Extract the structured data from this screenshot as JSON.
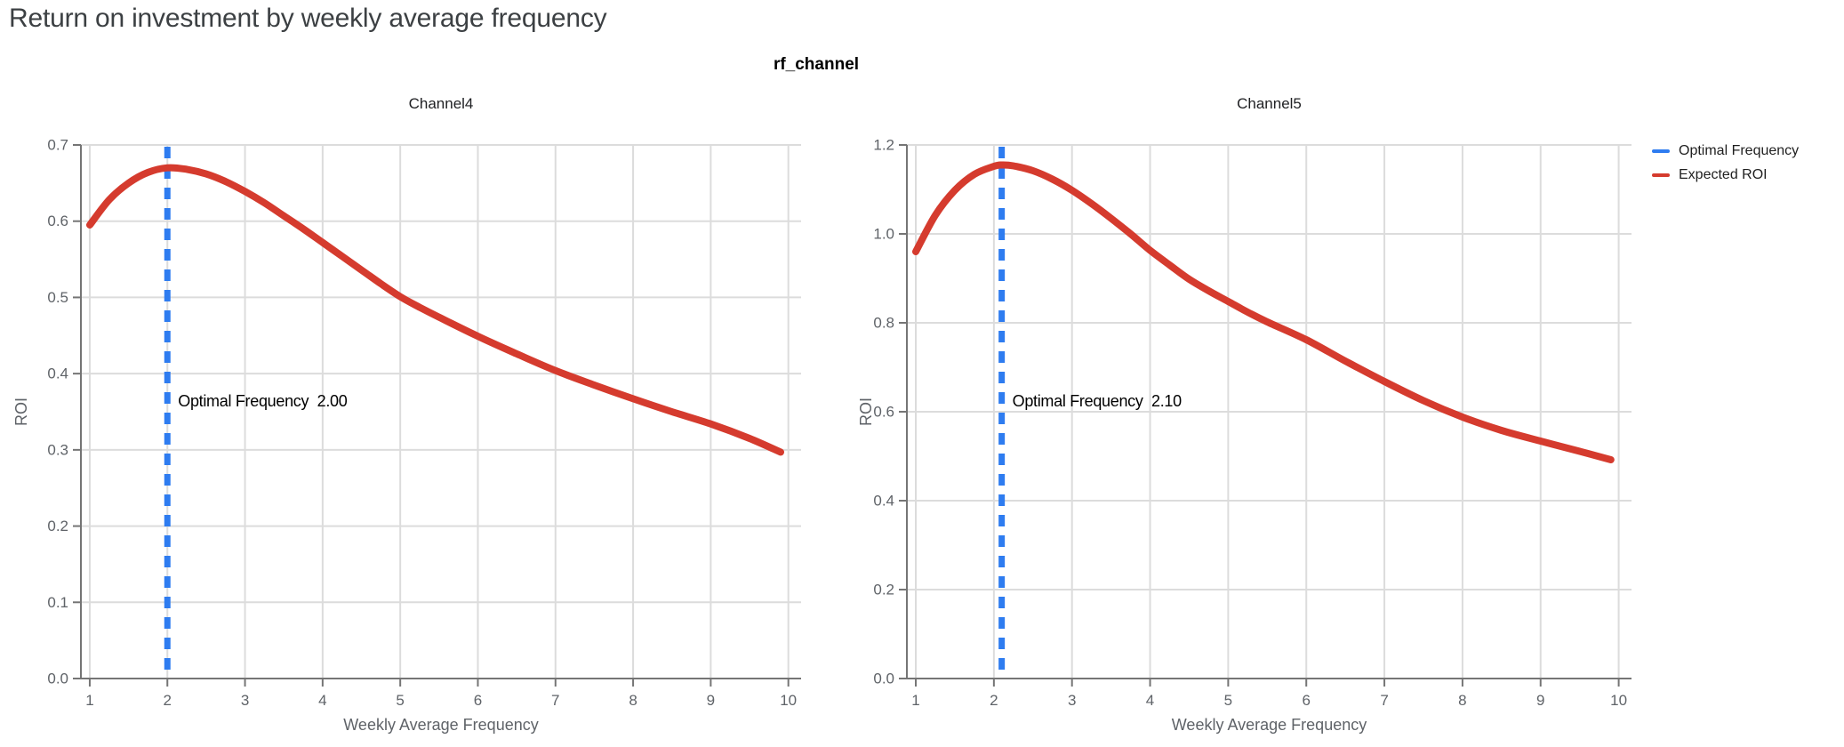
{
  "page": {
    "title": "Return on investment by weekly average frequency"
  },
  "chart": {
    "facet_title": "rf_channel",
    "legend": {
      "position": "top-right",
      "items": [
        {
          "label": "Optimal Frequency",
          "color": "#2e7cf0"
        },
        {
          "label": "Expected ROI",
          "color": "#d53b2e"
        }
      ]
    }
  },
  "colors": {
    "optimal_line": "#2e7cf0",
    "roi_curve": "#d53b2e",
    "grid": "#dcdcdc",
    "axis": "#757575",
    "tick_text": "#5f6368",
    "annotation_text": "#000000"
  },
  "chart_data": [
    {
      "type": "line",
      "title": "Channel4",
      "xlabel": "Weekly Average Frequency",
      "ylabel": "ROI",
      "xlim": [
        1,
        10
      ],
      "ylim": [
        0,
        0.7
      ],
      "grid": true,
      "xticks": [
        1,
        2,
        3,
        4,
        5,
        6,
        7,
        8,
        9,
        10
      ],
      "ytick_values": [
        0,
        0.1,
        0.2,
        0.3,
        0.4,
        0.5,
        0.6,
        0.7
      ],
      "ytick_labels": [
        "0.0",
        "0.1",
        "0.2",
        "0.3",
        "0.4",
        "0.5",
        "0.6",
        "0.7"
      ],
      "optimal_frequency": 2.0,
      "annotation_label": "Optimal Frequency",
      "annotation_value": "2.00",
      "series": [
        {
          "name": "Expected ROI",
          "points": [
            [
              1,
              0.595
            ],
            [
              1.25,
              0.628
            ],
            [
              1.5,
              0.65
            ],
            [
              1.75,
              0.664
            ],
            [
              2,
              0.67
            ],
            [
              2.25,
              0.668
            ],
            [
              2.5,
              0.662
            ],
            [
              2.75,
              0.652
            ],
            [
              3,
              0.639
            ],
            [
              3.25,
              0.624
            ],
            [
              3.5,
              0.607
            ],
            [
              3.75,
              0.59
            ],
            [
              4,
              0.572
            ],
            [
              4.25,
              0.554
            ],
            [
              4.5,
              0.536
            ],
            [
              4.75,
              0.518
            ],
            [
              5,
              0.501
            ],
            [
              5.25,
              0.487
            ],
            [
              5.5,
              0.474
            ],
            [
              6,
              0.449
            ],
            [
              6.5,
              0.426
            ],
            [
              7,
              0.404
            ],
            [
              7.5,
              0.385
            ],
            [
              8,
              0.367
            ],
            [
              8.5,
              0.35
            ],
            [
              9,
              0.334
            ],
            [
              9.5,
              0.315
            ],
            [
              9.9,
              0.297
            ]
          ]
        }
      ]
    },
    {
      "type": "line",
      "title": "Channel5",
      "xlabel": "Weekly Average Frequency",
      "ylabel": "ROI",
      "xlim": [
        1,
        10
      ],
      "ylim": [
        0,
        1.2
      ],
      "grid": true,
      "xticks": [
        1,
        2,
        3,
        4,
        5,
        6,
        7,
        8,
        9,
        10
      ],
      "ytick_values": [
        0,
        0.2,
        0.4,
        0.6,
        0.8,
        1.0,
        1.2
      ],
      "ytick_labels": [
        "0.0",
        "0.2",
        "0.4",
        "0.6",
        "0.8",
        "1.0",
        "1.2"
      ],
      "optimal_frequency": 2.1,
      "annotation_label": "Optimal Frequency",
      "annotation_value": "2.10",
      "series": [
        {
          "name": "Expected ROI",
          "points": [
            [
              1,
              0.96
            ],
            [
              1.25,
              1.042
            ],
            [
              1.5,
              1.098
            ],
            [
              1.75,
              1.134
            ],
            [
              2,
              1.152
            ],
            [
              2.1,
              1.155
            ],
            [
              2.25,
              1.153
            ],
            [
              2.5,
              1.142
            ],
            [
              2.75,
              1.123
            ],
            [
              3,
              1.098
            ],
            [
              3.25,
              1.068
            ],
            [
              3.5,
              1.035
            ],
            [
              3.75,
              1.0
            ],
            [
              4,
              0.963
            ],
            [
              4.25,
              0.93
            ],
            [
              4.5,
              0.898
            ],
            [
              4.75,
              0.872
            ],
            [
              5,
              0.848
            ],
            [
              5.25,
              0.824
            ],
            [
              5.5,
              0.802
            ],
            [
              6,
              0.762
            ],
            [
              6.5,
              0.714
            ],
            [
              7,
              0.668
            ],
            [
              7.5,
              0.625
            ],
            [
              8,
              0.588
            ],
            [
              8.5,
              0.558
            ],
            [
              9,
              0.534
            ],
            [
              9.5,
              0.511
            ],
            [
              9.9,
              0.492
            ]
          ]
        }
      ]
    }
  ]
}
